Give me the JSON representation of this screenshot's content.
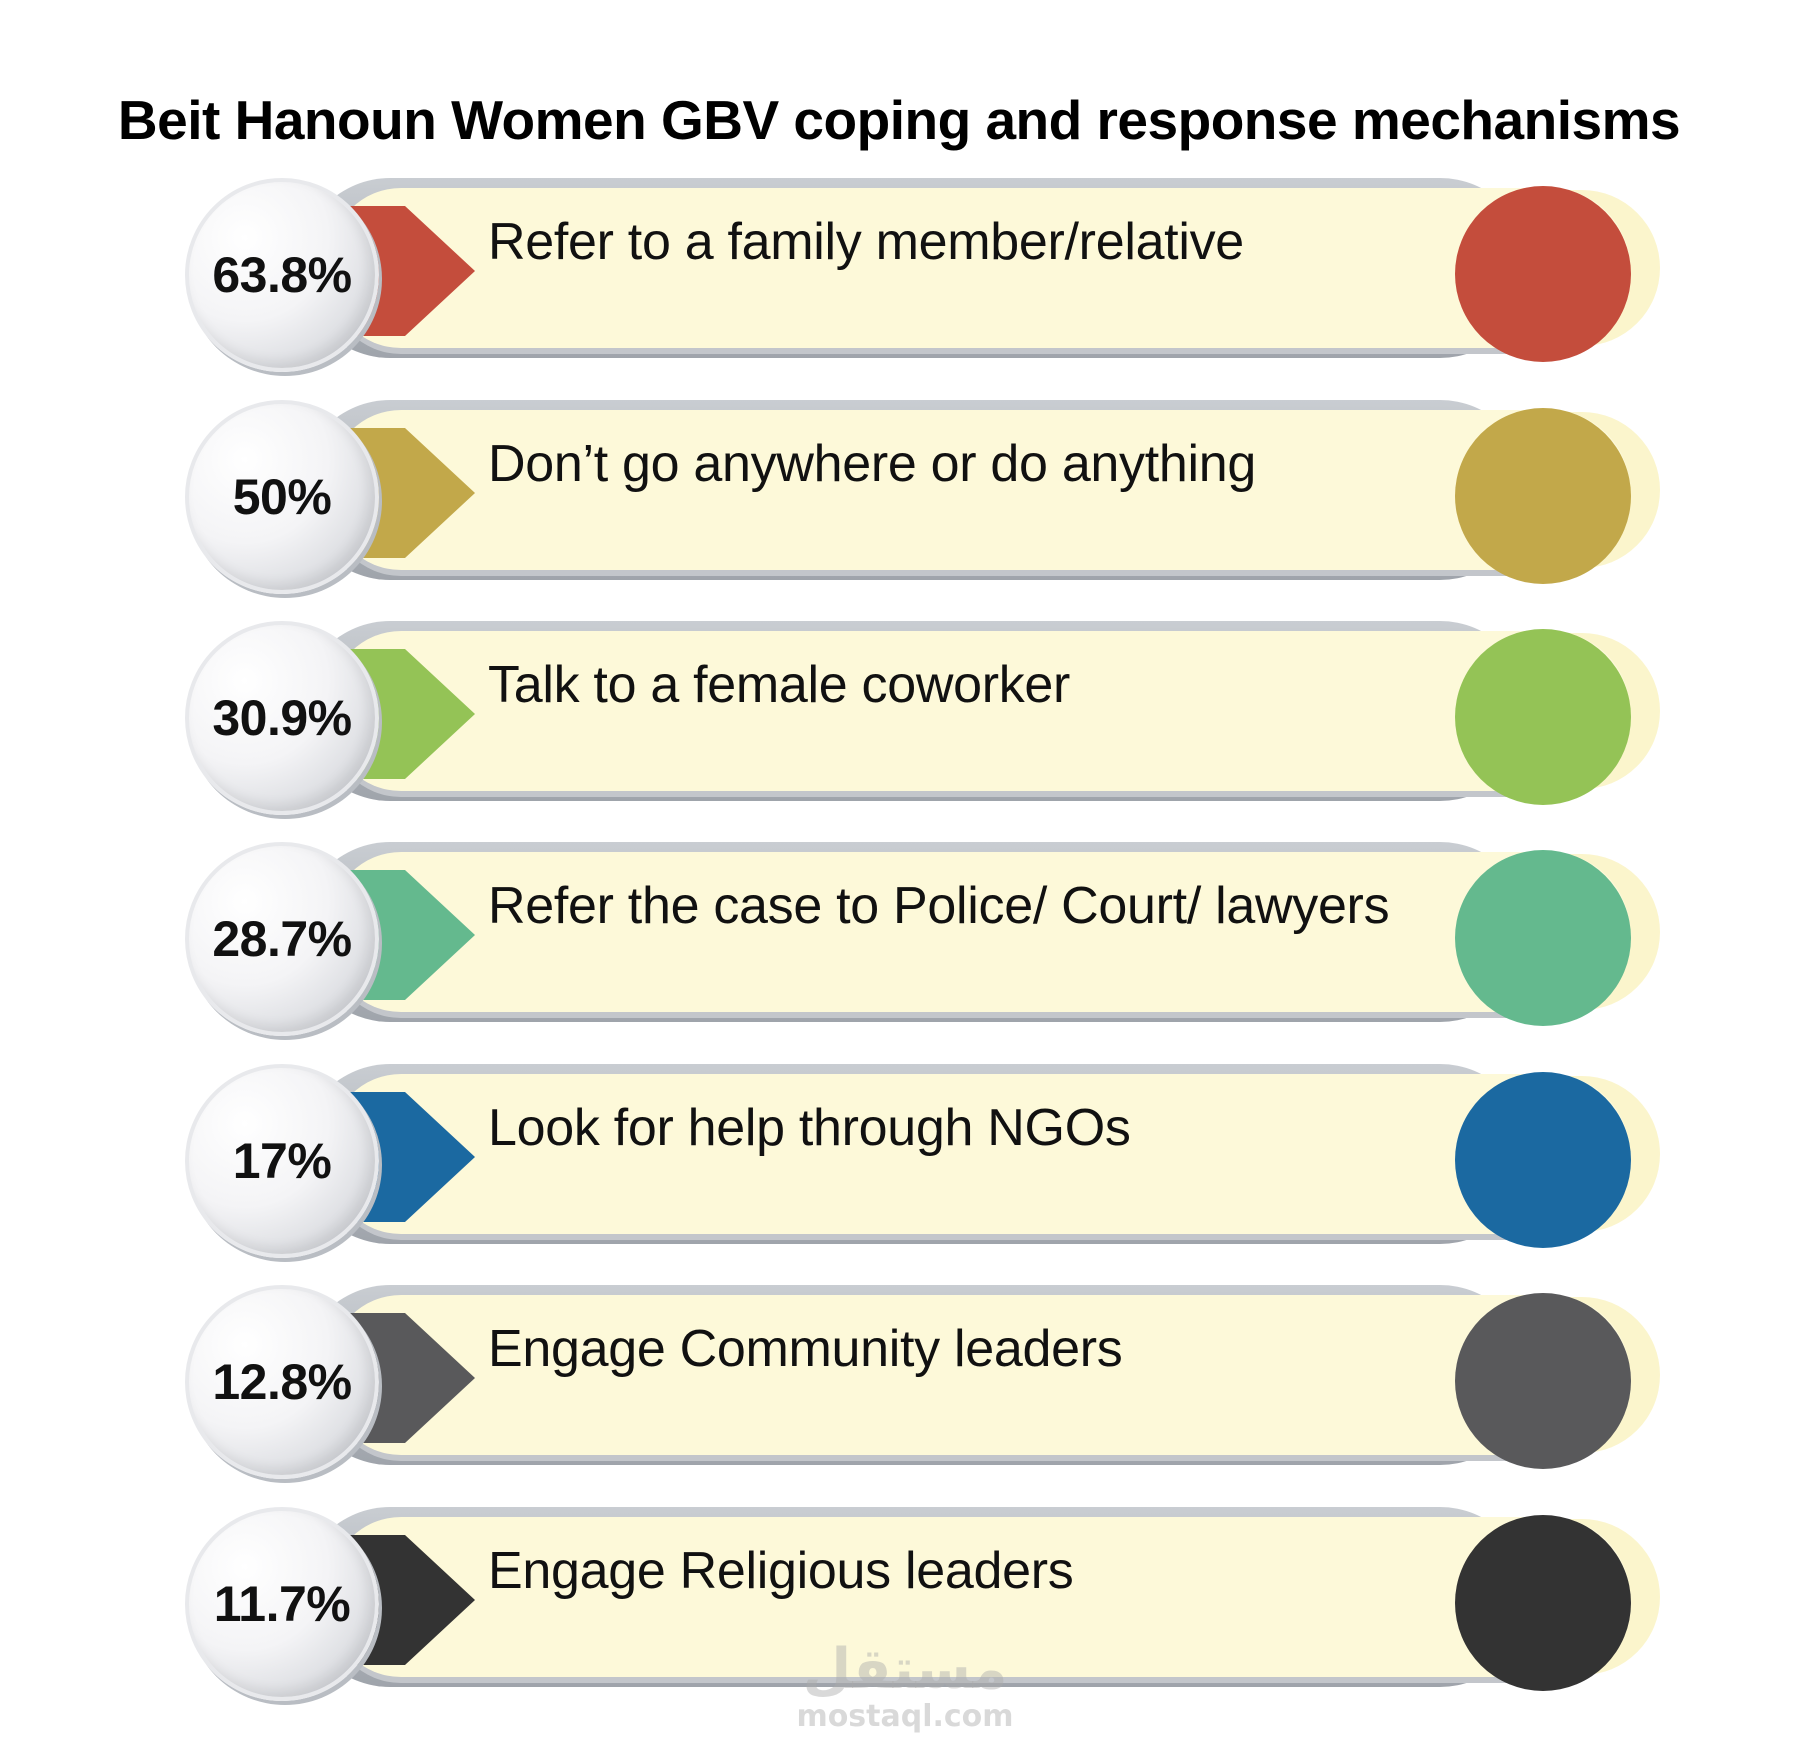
{
  "title": "Beit Hanoun Women GBV coping and response mechanisms",
  "items": [
    {
      "percent": "63.8%",
      "label": "Refer to a family member/relative",
      "color": "#c44d3c"
    },
    {
      "percent": "50%",
      "label": "Don’t go anywhere or do anything",
      "color": "#c2a84a"
    },
    {
      "percent": "30.9%",
      "label": "Talk to a female coworker",
      "color": "#94c356"
    },
    {
      "percent": "28.7%",
      "label": "Refer the case to Police/ Court/ lawyers",
      "color": "#64b98e"
    },
    {
      "percent": "17%",
      "label": "Look for help through NGOs",
      "color": "#1b69a1"
    },
    {
      "percent": "12.8%",
      "label": "Engage Community leaders",
      "color": "#59595b"
    },
    {
      "percent": "11.7%",
      "label": "Engage Religious leaders",
      "color": "#333333"
    }
  ],
  "watermark": {
    "logo": "مستقل",
    "url": "mostaql.com"
  }
}
